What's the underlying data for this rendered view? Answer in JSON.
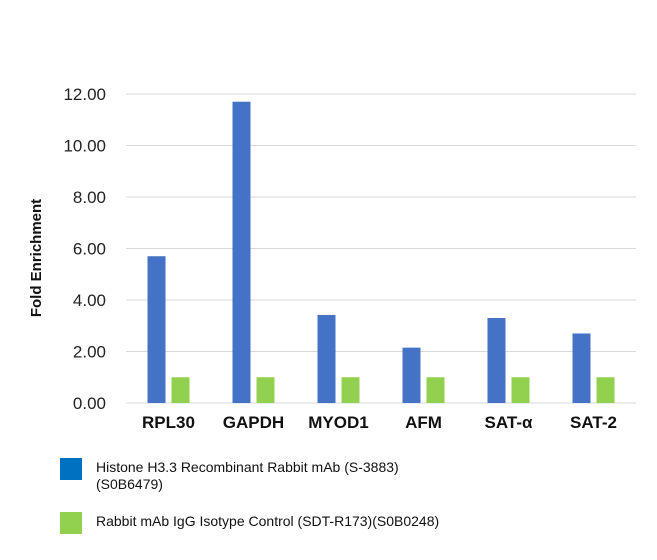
{
  "chart_data": {
    "type": "bar",
    "title": "",
    "xlabel": "",
    "ylabel": "Fold Enrichment",
    "ylim": [
      0,
      12
    ],
    "yticks": [
      "0.00",
      "2.00",
      "4.00",
      "6.00",
      "8.00",
      "10.00",
      "12.00"
    ],
    "yticks_values": [
      0,
      2,
      4,
      6,
      8,
      10,
      12
    ],
    "grid": true,
    "legend_position": "bottom",
    "categories": [
      "RPL30",
      "GAPDH",
      "MYOD1",
      "AFM",
      "SAT-α",
      "SAT-2"
    ],
    "series": [
      {
        "name": "Histone H3.3 Recombinant Rabbit mAb (S-3883)",
        "name_line2": "(S0B6479)",
        "color": "#4472c4",
        "legend_color": "#0070c0",
        "values": [
          5.7,
          11.7,
          3.42,
          2.15,
          3.3,
          2.7
        ]
      },
      {
        "name": "Rabbit mAb IgG Isotype Control (SDT-R173)(S0B0248)",
        "color": "#92d050",
        "legend_color": "#92d050",
        "values": [
          1.0,
          1.0,
          1.0,
          1.0,
          1.0,
          1.0
        ]
      }
    ]
  }
}
